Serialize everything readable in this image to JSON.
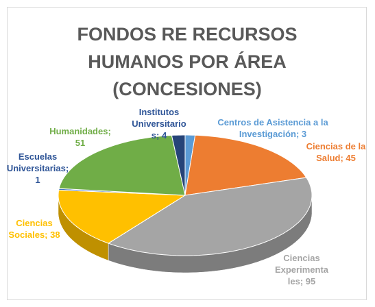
{
  "chart_data": {
    "type": "pie",
    "title": "FONDOS RE RECURSOS HUMANOS POR ÁREA (CONCESIONES)",
    "categories": [
      "Centros de Asistencia a la Investigación",
      "Ciencias de la Salud",
      "Ciencias Experimentales",
      "Ciencias Sociales",
      "Escuelas Universitarias",
      "Humanidades",
      "Institutos Universitarios"
    ],
    "values": [
      3,
      45,
      95,
      38,
      1,
      51,
      4
    ],
    "value_labels": [
      "Centros de Asistencia a la Investigación; 3",
      "Ciencias de la Salud; 45",
      "Ciencias Experimentales; 95",
      "Ciencias Sociales; 38",
      "Escuelas Universitarias; 1",
      "Humanidades; 51",
      "Institutos Universitarios; 4"
    ],
    "colors": [
      "#5b9bd5",
      "#ed7d31",
      "#a5a5a5",
      "#ffc000",
      "#4472c4",
      "#70ad47",
      "#264478"
    ]
  }
}
